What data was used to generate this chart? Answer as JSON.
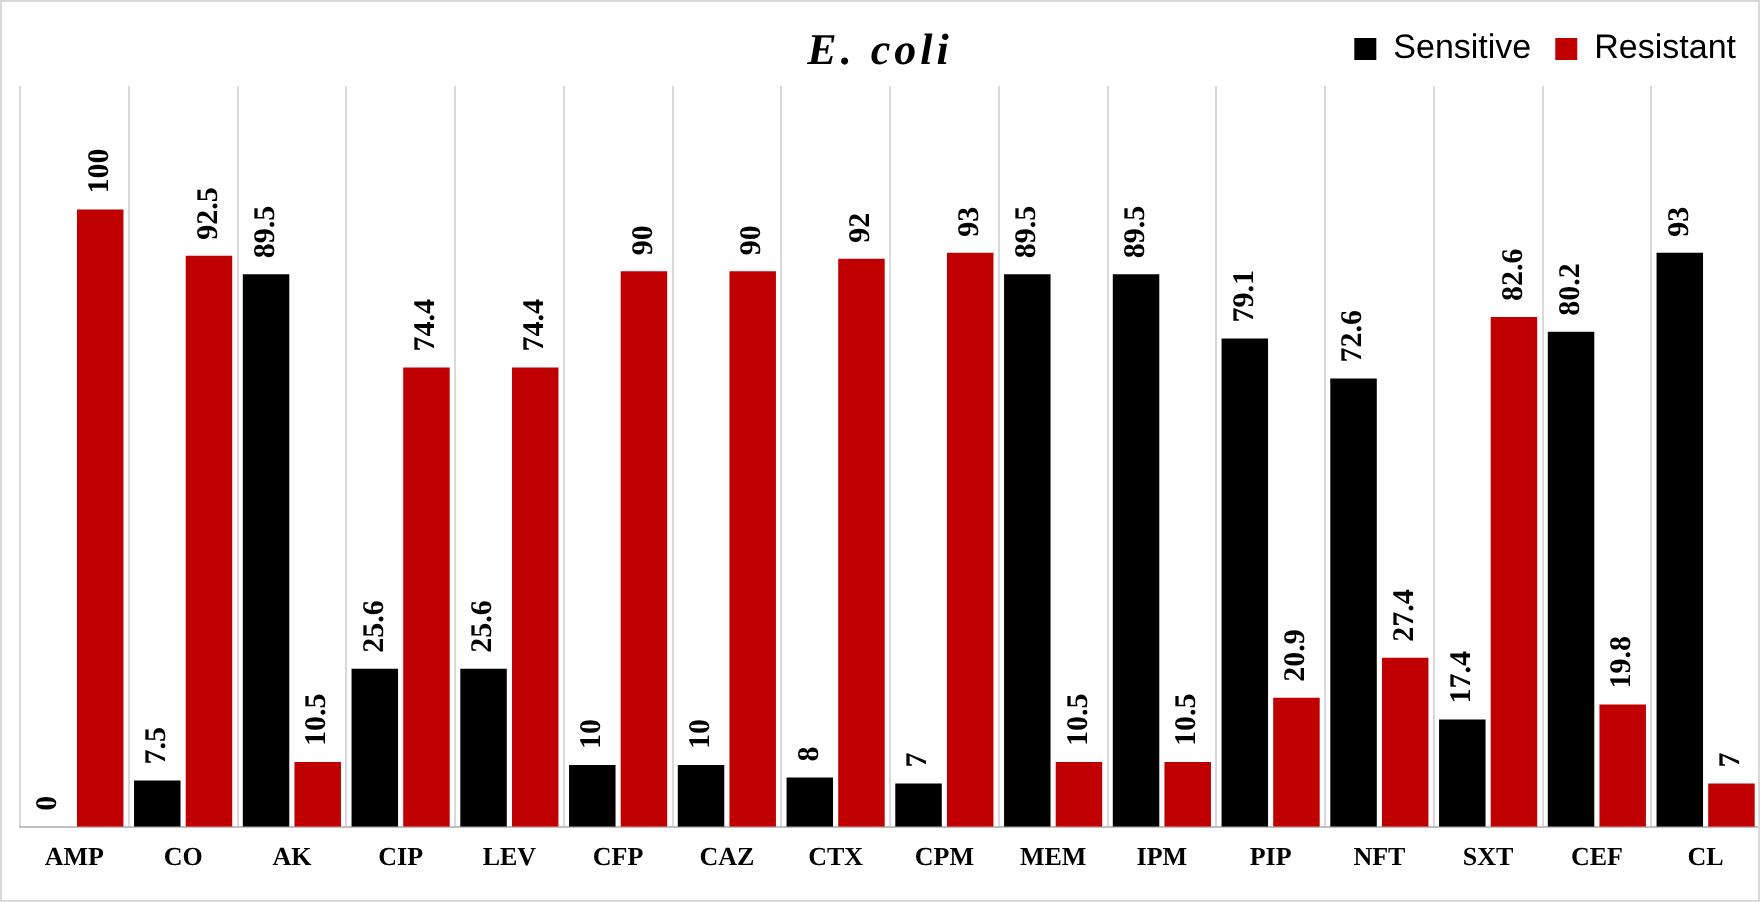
{
  "chart_data": {
    "type": "bar",
    "title": "E. coli",
    "categories": [
      "AMP",
      "CO",
      "AK",
      "CIP",
      "LEV",
      "CFP",
      "CAZ",
      "CTX",
      "CPM",
      "MEM",
      "IPM",
      "PIP",
      "NFT",
      "SXT",
      "CEF",
      "CL"
    ],
    "series": [
      {
        "name": "Sensitive",
        "color": "#000000",
        "values": [
          0,
          7.5,
          89.5,
          25.6,
          25.6,
          10,
          10,
          8,
          7,
          89.5,
          89.5,
          79.1,
          72.6,
          17.4,
          80.2,
          93
        ]
      },
      {
        "name": "Resistant",
        "color": "#c00000",
        "values": [
          100,
          92.5,
          10.5,
          74.4,
          74.4,
          90,
          90,
          92,
          93,
          10.5,
          10.5,
          20.9,
          27.4,
          82.6,
          19.8,
          7
        ]
      }
    ],
    "data_labels": true,
    "grid": "x",
    "legend": "top right"
  }
}
